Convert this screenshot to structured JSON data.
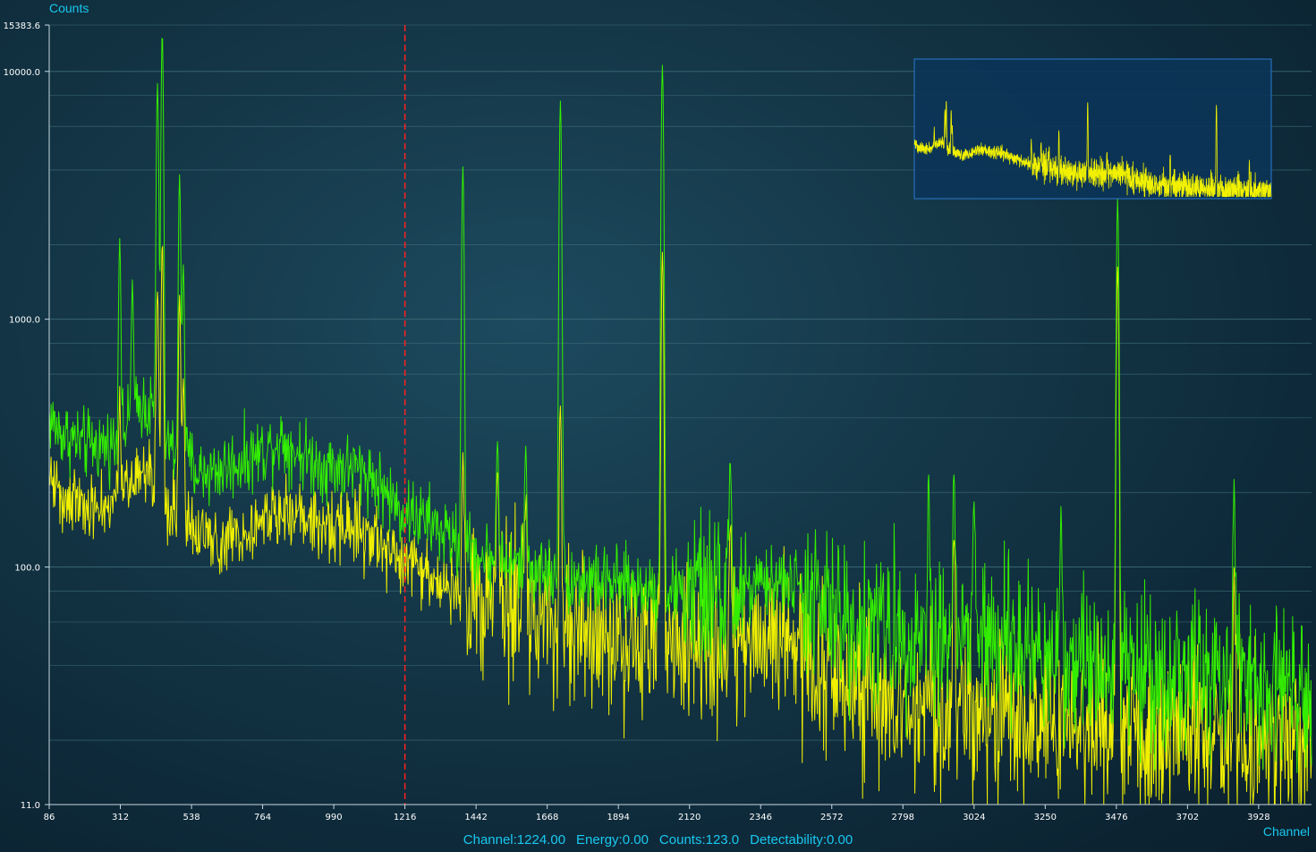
{
  "colors": {
    "series_1": "#33ee00",
    "series_2": "#f0f000",
    "cursor": "#ff2020",
    "grid": "#3f6c78",
    "axis": "#c8d8e0",
    "accent_text": "#19c8f0",
    "inset_fill": "#0b3458",
    "inset_border": "#2a7ad0"
  },
  "status": {
    "channel": "Channel:1224.00",
    "energy": "Energy:0.00",
    "counts": "Counts:123.0",
    "detectability": "Detectability:0.00"
  },
  "chart_data": {
    "type": "line",
    "ylabel": "Counts",
    "xlabel": "Channel",
    "y_scale": "log",
    "ylim": [
      11.0,
      15383.6
    ],
    "xlim": [
      86,
      4096
    ],
    "y_tick_labels": [
      "15383.6",
      "10000.0",
      "1000.0",
      "100.0",
      "11.0"
    ],
    "x_tick_labels": [
      "86",
      "312",
      "538",
      "764",
      "990",
      "1216",
      "1442",
      "1668",
      "1894",
      "2120",
      "2346",
      "2572",
      "2798",
      "3024",
      "3250",
      "3476",
      "3702",
      "3928"
    ],
    "grid": true,
    "cursor_channel": 1216,
    "inset_overview": true,
    "series": [
      {
        "color": "#33ee00",
        "baseline": [
          [
            86,
            400
          ],
          [
            120,
            350
          ],
          [
            200,
            310
          ],
          [
            260,
            310
          ],
          [
            300,
            320
          ],
          [
            340,
            380
          ],
          [
            380,
            460
          ],
          [
            420,
            420
          ],
          [
            440,
            330
          ],
          [
            480,
            300
          ],
          [
            520,
            280
          ],
          [
            560,
            240
          ],
          [
            620,
            245
          ],
          [
            700,
            270
          ],
          [
            780,
            300
          ],
          [
            820,
            330
          ],
          [
            860,
            300
          ],
          [
            900,
            280
          ],
          [
            960,
            255
          ],
          [
            1000,
            255
          ],
          [
            1060,
            250
          ],
          [
            1100,
            240
          ],
          [
            1140,
            210
          ],
          [
            1200,
            170
          ],
          [
            1300,
            150
          ],
          [
            1400,
            120
          ],
          [
            1500,
            105
          ],
          [
            1600,
            100
          ],
          [
            1700,
            92
          ],
          [
            1800,
            88
          ],
          [
            1900,
            85
          ],
          [
            2000,
            82
          ],
          [
            2100,
            80
          ],
          [
            2200,
            78
          ],
          [
            2300,
            80
          ],
          [
            2400,
            88
          ],
          [
            2460,
            85
          ],
          [
            2520,
            70
          ],
          [
            2600,
            62
          ],
          [
            2700,
            58
          ],
          [
            2800,
            55
          ],
          [
            2900,
            54
          ],
          [
            3000,
            52
          ],
          [
            3100,
            50
          ],
          [
            3200,
            47
          ],
          [
            3300,
            44
          ],
          [
            3400,
            42
          ],
          [
            3500,
            40
          ],
          [
            3600,
            38
          ],
          [
            3700,
            37
          ],
          [
            3800,
            36
          ],
          [
            3900,
            36
          ],
          [
            4000,
            35
          ],
          [
            4096,
            35
          ]
        ],
        "peaks": [
          [
            310,
            1800
          ],
          [
            350,
            1000
          ],
          [
            430,
            8500
          ],
          [
            445,
            14000
          ],
          [
            500,
            3500
          ],
          [
            512,
            1400
          ],
          [
            1400,
            4000
          ],
          [
            1510,
            240
          ],
          [
            1600,
            200
          ],
          [
            1710,
            7500
          ],
          [
            2034,
            10500
          ],
          [
            2250,
            170
          ],
          [
            2880,
            150
          ],
          [
            2960,
            180
          ],
          [
            3024,
            140
          ],
          [
            3300,
            120
          ],
          [
            3480,
            3000
          ],
          [
            3850,
            160
          ]
        ]
      },
      {
        "color": "#f0f000",
        "baseline": [
          [
            86,
            240
          ],
          [
            120,
            200
          ],
          [
            200,
            180
          ],
          [
            260,
            170
          ],
          [
            300,
            175
          ],
          [
            340,
            210
          ],
          [
            380,
            270
          ],
          [
            440,
            200
          ],
          [
            480,
            170
          ],
          [
            520,
            150
          ],
          [
            560,
            130
          ],
          [
            620,
            130
          ],
          [
            700,
            140
          ],
          [
            780,
            160
          ],
          [
            820,
            170
          ],
          [
            860,
            165
          ],
          [
            900,
            160
          ],
          [
            960,
            150
          ],
          [
            1000,
            148
          ],
          [
            1060,
            145
          ],
          [
            1100,
            140
          ],
          [
            1140,
            125
          ],
          [
            1200,
            105
          ],
          [
            1300,
            92
          ],
          [
            1400,
            80
          ],
          [
            1500,
            72
          ],
          [
            1600,
            62
          ],
          [
            1700,
            55
          ],
          [
            1800,
            52
          ],
          [
            1900,
            50
          ],
          [
            2000,
            50
          ],
          [
            2100,
            49
          ],
          [
            2200,
            48
          ],
          [
            2300,
            50
          ],
          [
            2400,
            52
          ],
          [
            2460,
            48
          ],
          [
            2520,
            37
          ],
          [
            2600,
            33
          ],
          [
            2700,
            30
          ],
          [
            2800,
            28
          ],
          [
            2900,
            27
          ],
          [
            3000,
            26
          ],
          [
            3100,
            25
          ],
          [
            3200,
            24
          ],
          [
            3300,
            23
          ],
          [
            3400,
            22
          ],
          [
            3500,
            22
          ],
          [
            3600,
            21
          ],
          [
            3700,
            21
          ],
          [
            3800,
            21
          ],
          [
            3900,
            20
          ],
          [
            4000,
            20
          ],
          [
            4096,
            20
          ]
        ],
        "peaks": [
          [
            310,
            300
          ],
          [
            430,
            1100
          ],
          [
            445,
            1800
          ],
          [
            500,
            1100
          ],
          [
            512,
            400
          ],
          [
            1400,
            200
          ],
          [
            1510,
            170
          ],
          [
            1600,
            150
          ],
          [
            1710,
            400
          ],
          [
            2034,
            1800
          ],
          [
            2250,
            90
          ],
          [
            2960,
            110
          ],
          [
            3480,
            1600
          ],
          [
            3850,
            70
          ]
        ]
      }
    ]
  }
}
